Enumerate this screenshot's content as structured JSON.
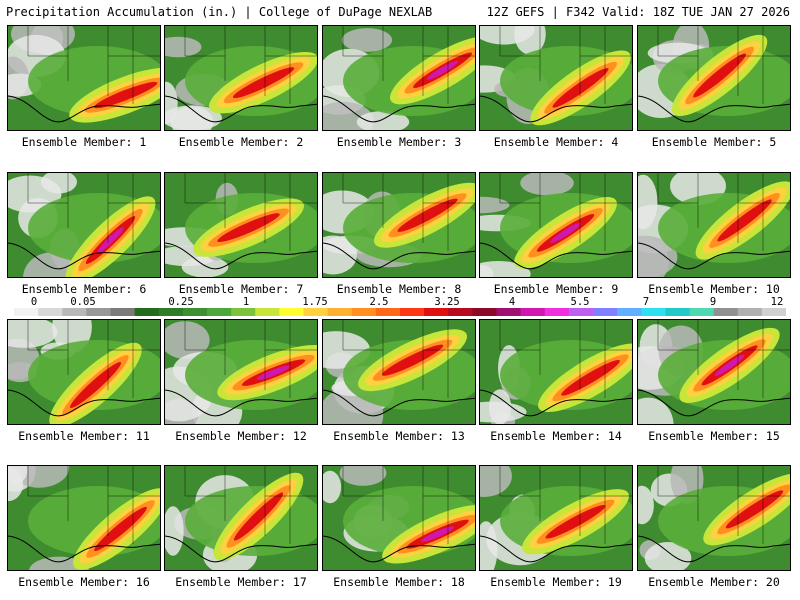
{
  "header": {
    "left": "Precipitation Accumulation (in.) | College of DuPage NEXLAB",
    "right": "12Z GEFS | F342 Valid: 18Z TUE JAN 27 2026"
  },
  "legend": {
    "labels": [
      "0",
      "0.05",
      "0.25",
      "1",
      "1.75",
      "2.5",
      "3.25",
      "4",
      "5.5",
      "7",
      "9",
      "12"
    ],
    "colors": [
      "#f2f2f2",
      "#d8d8d8",
      "#b8b8b8",
      "#989898",
      "#7a7a7a",
      "#246b1e",
      "#2f7d27",
      "#3c9030",
      "#4ca83a",
      "#7cc23a",
      "#c8e63a",
      "#ffff30",
      "#ffd040",
      "#ffb030",
      "#ff9020",
      "#ff6818",
      "#ff3814",
      "#e01010",
      "#b80a1e",
      "#8c0a28",
      "#a01070",
      "#d018b0",
      "#f030e0",
      "#c060f0",
      "#8080ff",
      "#60b0ff",
      "#30e0f0",
      "#20c8c8",
      "#50d8b0",
      "#909090",
      "#b0b0b0",
      "#d0d0d0"
    ]
  },
  "panels": [
    {
      "caption": "Ensemble Member: 1"
    },
    {
      "caption": "Ensemble Member: 2"
    },
    {
      "caption": "Ensemble Member: 3"
    },
    {
      "caption": "Ensemble Member: 4"
    },
    {
      "caption": "Ensemble Member: 5"
    },
    {
      "caption": "Ensemble Member: 6"
    },
    {
      "caption": "Ensemble Member: 7"
    },
    {
      "caption": "Ensemble Member: 8"
    },
    {
      "caption": "Ensemble Member: 9"
    },
    {
      "caption": "Ensemble Member: 10"
    },
    {
      "caption": "Ensemble Member: 11"
    },
    {
      "caption": "Ensemble Member: 12"
    },
    {
      "caption": "Ensemble Member: 13"
    },
    {
      "caption": "Ensemble Member: 14"
    },
    {
      "caption": "Ensemble Member: 15"
    },
    {
      "caption": "Ensemble Member: 16"
    },
    {
      "caption": "Ensemble Member: 17"
    },
    {
      "caption": "Ensemble Member: 18"
    },
    {
      "caption": "Ensemble Member: 19"
    },
    {
      "caption": "Ensemble Member: 20"
    }
  ]
}
